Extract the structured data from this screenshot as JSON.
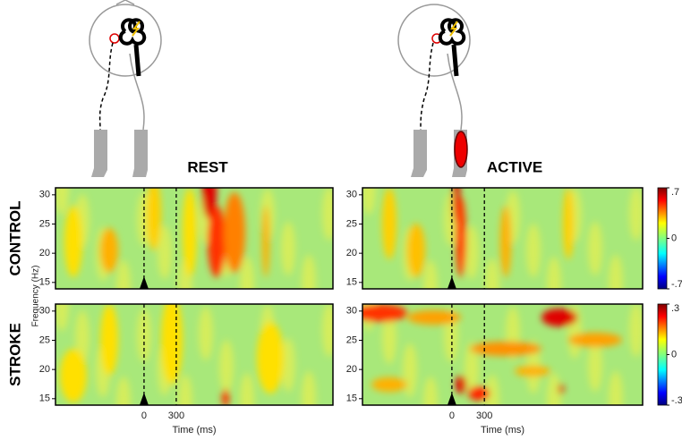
{
  "conditions": [
    "REST",
    "ACTIVE"
  ],
  "groups": [
    "CONTROL",
    "STROKE"
  ],
  "axes": {
    "ylabel": "Frequency (Hz)",
    "xlabel": "Time (ms)",
    "yticks": [
      15,
      20,
      25,
      30
    ],
    "ylim": [
      13.9,
      31.2
    ],
    "xticks": [
      0,
      300
    ],
    "xlim": [
      -825,
      1760
    ]
  },
  "colorbars": [
    {
      "lim": [
        -0.7,
        0.7
      ],
      "ticks": [
        {
          "value": 0.7,
          "label": ".7"
        },
        0,
        {
          "value": -0.7,
          "label": "-.7"
        }
      ]
    },
    {
      "lim": [
        -0.3,
        0.3
      ],
      "ticks": [
        {
          "value": 0.3,
          "label": ".3"
        },
        0,
        {
          "value": -0.3,
          "label": "-.3"
        }
      ]
    }
  ]
}
